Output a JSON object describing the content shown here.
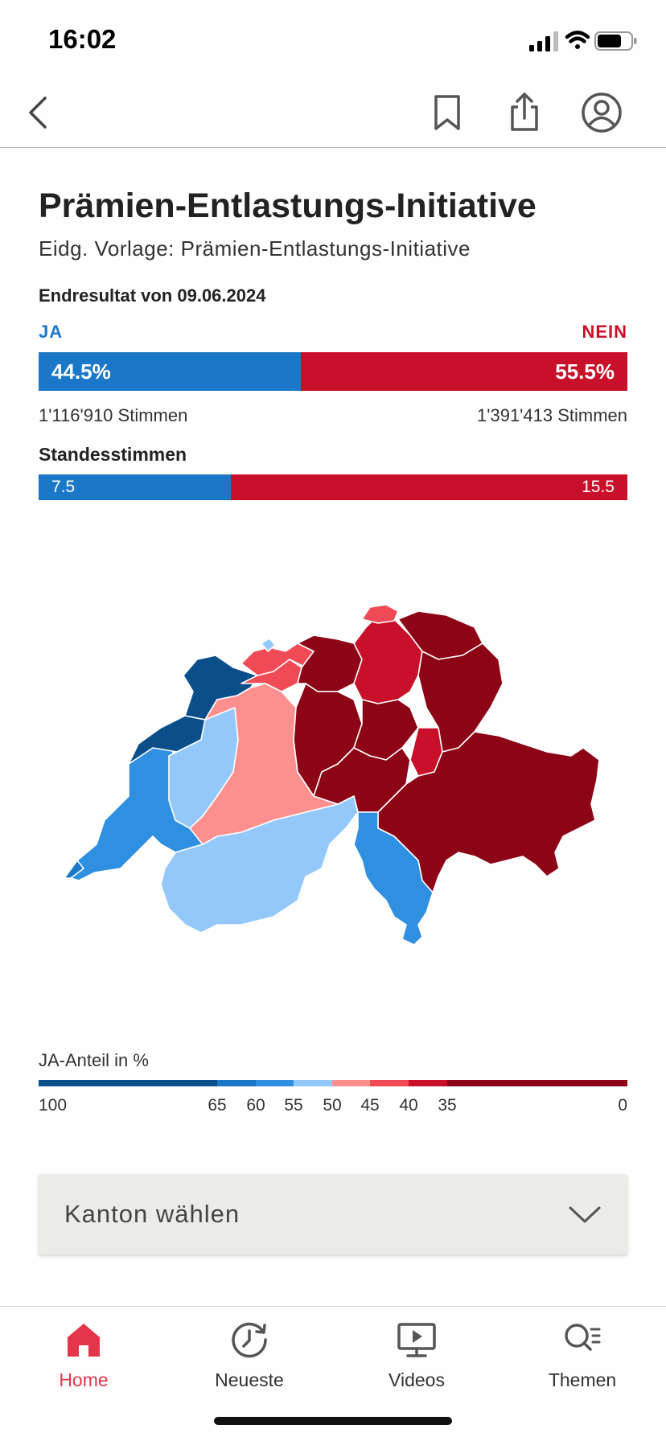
{
  "status_bar": {
    "time": "16:02"
  },
  "header": {
    "title": "Prämien-Entlastungs-Initiative",
    "subtitle": "Eidg. Vorlage: Prämien-Entlastungs-Initiative",
    "result_date": "Endresultat von 09.06.2024"
  },
  "result": {
    "ja_label": "JA",
    "nein_label": "NEIN",
    "ja_percent": 44.5,
    "nein_percent": 55.5,
    "ja_percent_text": "44.5%",
    "nein_percent_text": "55.5%",
    "ja_votes": "1'116'910 Stimmen",
    "nein_votes": "1'391'413 Stimmen"
  },
  "cantons": {
    "title": "Standesstimmen",
    "ja": 7.5,
    "nein": 15.5,
    "ja_text": "7.5",
    "nein_text": "15.5"
  },
  "legend": {
    "title": "JA-Anteil in %",
    "ticks": [
      "100",
      "65",
      "60",
      "55",
      "50",
      "45",
      "40",
      "35",
      "0"
    ],
    "bands": [
      {
        "from": 100,
        "to": 65,
        "color": "#0b4f8a"
      },
      {
        "from": 65,
        "to": 60,
        "color": "#1b78c8"
      },
      {
        "from": 60,
        "to": 55,
        "color": "#2f8fe0"
      },
      {
        "from": 55,
        "to": 50,
        "color": "#94c8fb"
      },
      {
        "from": 50,
        "to": 45,
        "color": "#fd8f8f"
      },
      {
        "from": 45,
        "to": 40,
        "color": "#ef4a56"
      },
      {
        "from": 40,
        "to": 35,
        "color": "#c9102a"
      },
      {
        "from": 35,
        "to": 0,
        "color": "#8c0415"
      }
    ]
  },
  "dropdown": {
    "label": "Kanton wählen"
  },
  "tabs": [
    {
      "label": "Home",
      "icon": "home-icon",
      "active": true
    },
    {
      "label": "Neueste",
      "icon": "clock-icon",
      "active": false
    },
    {
      "label": "Videos",
      "icon": "video-icon",
      "active": false
    },
    {
      "label": "Themen",
      "icon": "search-list-icon",
      "active": false
    }
  ],
  "colors": {
    "ja": "#1b78c8",
    "nein": "#c9102a",
    "accent": "#e3364b"
  }
}
